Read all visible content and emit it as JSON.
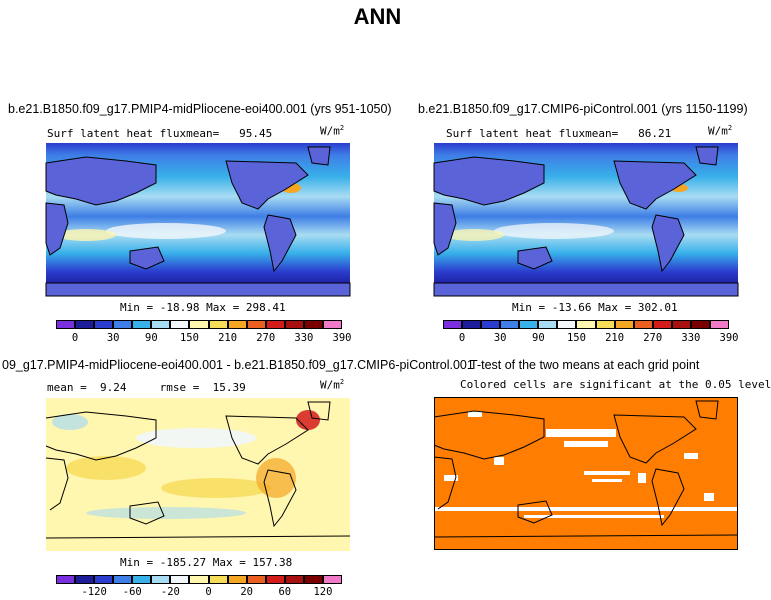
{
  "figure": {
    "title": "ANN"
  },
  "chart_data": [
    {
      "type": "heatmap",
      "title": "b.e21.B1850.f09_g17.PMIP4-midPliocene-eoi400.001 (yrs 951-1050)",
      "variable": "Surf latent heat flux",
      "mean_label": "mean=",
      "mean": "95.45",
      "units": "W/m",
      "units_exp": "2",
      "stats": "Min = -18.98 Max = 298.41",
      "min": -18.98,
      "max": 298.41,
      "colorbar_ticks": [
        "0",
        "30",
        "90",
        "150",
        "210",
        "270",
        "330",
        "390"
      ],
      "colorbar_colors": [
        "#7a2fe0",
        "#1d1d9c",
        "#2b3dcf",
        "#3f7ee6",
        "#38b0ea",
        "#a8dcf2",
        "#f2f7fb",
        "#fff6b0",
        "#f7dc57",
        "#f5a623",
        "#eb6020",
        "#d41b1b",
        "#a80f0f",
        "#7a0000",
        "#f07ac8"
      ]
    },
    {
      "type": "heatmap",
      "title": "b.e21.B1850.f09_g17.CMIP6-piControl.001 (yrs 1150-1199)",
      "variable": "Surf latent heat flux",
      "mean_label": "mean=",
      "mean": "86.21",
      "units": "W/m",
      "units_exp": "2",
      "stats": "Min = -13.66 Max = 302.01",
      "min": -13.66,
      "max": 302.01,
      "colorbar_ticks": [
        "0",
        "30",
        "90",
        "150",
        "210",
        "270",
        "330",
        "390"
      ],
      "colorbar_colors": [
        "#7a2fe0",
        "#1d1d9c",
        "#2b3dcf",
        "#3f7ee6",
        "#38b0ea",
        "#a8dcf2",
        "#f2f7fb",
        "#fff6b0",
        "#f7dc57",
        "#f5a623",
        "#eb6020",
        "#d41b1b",
        "#a80f0f",
        "#7a0000",
        "#f07ac8"
      ]
    },
    {
      "type": "heatmap",
      "title": "09_g17.PMIP4-midPliocene-eoi400.001 - b.e21.B1850.f09_g17.CMIP6-piControl.001",
      "mean_label": "mean =",
      "mean": "9.24",
      "rmse_label": "rmse =",
      "rmse": "15.39",
      "units": "W/m",
      "units_exp": "2",
      "stats": "Min = -185.27 Max = 157.38",
      "min": -185.27,
      "max": 157.38,
      "colorbar_ticks": [
        "-120",
        "-60",
        "-20",
        "0",
        "20",
        "60",
        "120"
      ],
      "colorbar_colors": [
        "#7a2fe0",
        "#1d1d9c",
        "#2b3dcf",
        "#3f7ee6",
        "#38b0ea",
        "#a8dcf2",
        "#f2f7fb",
        "#fff6b0",
        "#f7dc57",
        "#f5a623",
        "#eb6020",
        "#d41b1b",
        "#a80f0f",
        "#7a0000",
        "#f07ac8"
      ]
    },
    {
      "type": "heatmap",
      "title": "T-test of the two means at each grid point",
      "subtitle": "Colored cells are significant at the 0.05 level",
      "significant_color": "#ff7d00"
    }
  ]
}
